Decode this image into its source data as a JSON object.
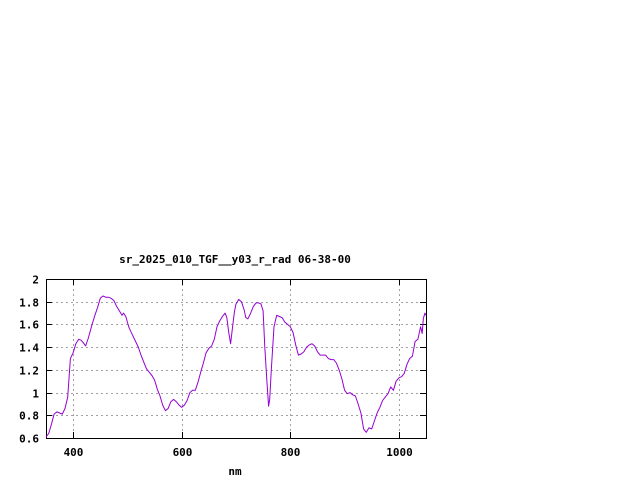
{
  "chart_data": {
    "type": "line",
    "title": "sr_2025_010_TGF__y03_r_rad 06-38-00",
    "xlabel": "nm",
    "ylabel": "",
    "xlim": [
      350,
      1050
    ],
    "ylim": [
      0.6,
      2.0
    ],
    "grid": true,
    "x_ticks": [
      400,
      600,
      800,
      1000
    ],
    "x_tick_labels": [
      "400",
      "600",
      "800",
      "1000"
    ],
    "y_ticks": [
      0.6,
      0.8,
      1.0,
      1.2,
      1.4,
      1.6,
      1.8,
      2.0
    ],
    "y_tick_labels": [
      "0.6",
      "0.8",
      "1",
      "1.2",
      "1.4",
      "1.6",
      "1.8",
      "2"
    ],
    "series": [
      {
        "name": "",
        "color": "#9400d3",
        "points": [
          [
            350,
            0.61
          ],
          [
            355,
            0.64
          ],
          [
            360,
            0.72
          ],
          [
            365,
            0.81
          ],
          [
            370,
            0.83
          ],
          [
            375,
            0.82
          ],
          [
            380,
            0.81
          ],
          [
            385,
            0.86
          ],
          [
            390,
            0.96
          ],
          [
            395,
            1.3
          ],
          [
            400,
            1.35
          ],
          [
            405,
            1.43
          ],
          [
            410,
            1.47
          ],
          [
            415,
            1.46
          ],
          [
            420,
            1.43
          ],
          [
            423,
            1.41
          ],
          [
            428,
            1.48
          ],
          [
            435,
            1.6
          ],
          [
            440,
            1.68
          ],
          [
            445,
            1.75
          ],
          [
            450,
            1.83
          ],
          [
            455,
            1.85
          ],
          [
            460,
            1.84
          ],
          [
            465,
            1.84
          ],
          [
            470,
            1.83
          ],
          [
            475,
            1.81
          ],
          [
            480,
            1.76
          ],
          [
            485,
            1.72
          ],
          [
            490,
            1.68
          ],
          [
            493,
            1.7
          ],
          [
            497,
            1.67
          ],
          [
            500,
            1.62
          ],
          [
            503,
            1.57
          ],
          [
            510,
            1.5
          ],
          [
            515,
            1.45
          ],
          [
            520,
            1.4
          ],
          [
            525,
            1.33
          ],
          [
            530,
            1.27
          ],
          [
            535,
            1.21
          ],
          [
            540,
            1.18
          ],
          [
            545,
            1.15
          ],
          [
            550,
            1.11
          ],
          [
            555,
            1.03
          ],
          [
            560,
            0.97
          ],
          [
            565,
            0.89
          ],
          [
            570,
            0.84
          ],
          [
            575,
            0.86
          ],
          [
            580,
            0.92
          ],
          [
            585,
            0.94
          ],
          [
            590,
            0.92
          ],
          [
            595,
            0.89
          ],
          [
            600,
            0.87
          ],
          [
            605,
            0.89
          ],
          [
            610,
            0.93
          ],
          [
            615,
            1.0
          ],
          [
            620,
            1.02
          ],
          [
            625,
            1.02
          ],
          [
            630,
            1.09
          ],
          [
            635,
            1.18
          ],
          [
            640,
            1.26
          ],
          [
            645,
            1.35
          ],
          [
            650,
            1.39
          ],
          [
            655,
            1.41
          ],
          [
            660,
            1.47
          ],
          [
            665,
            1.58
          ],
          [
            670,
            1.63
          ],
          [
            675,
            1.67
          ],
          [
            680,
            1.7
          ],
          [
            683,
            1.66
          ],
          [
            687,
            1.52
          ],
          [
            690,
            1.43
          ],
          [
            693,
            1.55
          ],
          [
            697,
            1.71
          ],
          [
            700,
            1.78
          ],
          [
            705,
            1.82
          ],
          [
            710,
            1.8
          ],
          [
            715,
            1.73
          ],
          [
            718,
            1.66
          ],
          [
            722,
            1.65
          ],
          [
            727,
            1.7
          ],
          [
            732,
            1.76
          ],
          [
            737,
            1.79
          ],
          [
            742,
            1.79
          ],
          [
            746,
            1.78
          ],
          [
            750,
            1.72
          ],
          [
            753,
            1.4
          ],
          [
            757,
            1.1
          ],
          [
            760,
            0.88
          ],
          [
            762,
            0.94
          ],
          [
            765,
            1.2
          ],
          [
            770,
            1.58
          ],
          [
            775,
            1.68
          ],
          [
            780,
            1.67
          ],
          [
            785,
            1.66
          ],
          [
            790,
            1.62
          ],
          [
            795,
            1.6
          ],
          [
            800,
            1.58
          ],
          [
            805,
            1.53
          ],
          [
            810,
            1.42
          ],
          [
            815,
            1.33
          ],
          [
            820,
            1.34
          ],
          [
            825,
            1.36
          ],
          [
            830,
            1.4
          ],
          [
            835,
            1.42
          ],
          [
            840,
            1.43
          ],
          [
            845,
            1.41
          ],
          [
            850,
            1.36
          ],
          [
            855,
            1.33
          ],
          [
            860,
            1.33
          ],
          [
            865,
            1.33
          ],
          [
            870,
            1.3
          ],
          [
            875,
            1.29
          ],
          [
            880,
            1.29
          ],
          [
            885,
            1.26
          ],
          [
            890,
            1.2
          ],
          [
            895,
            1.12
          ],
          [
            900,
            1.02
          ],
          [
            905,
            0.99
          ],
          [
            910,
            1.0
          ],
          [
            915,
            0.98
          ],
          [
            920,
            0.97
          ],
          [
            925,
            0.9
          ],
          [
            930,
            0.82
          ],
          [
            935,
            0.68
          ],
          [
            940,
            0.65
          ],
          [
            945,
            0.69
          ],
          [
            950,
            0.68
          ],
          [
            955,
            0.75
          ],
          [
            960,
            0.82
          ],
          [
            965,
            0.87
          ],
          [
            970,
            0.93
          ],
          [
            975,
            0.96
          ],
          [
            980,
            0.99
          ],
          [
            985,
            1.05
          ],
          [
            990,
            1.02
          ],
          [
            995,
            1.1
          ],
          [
            1000,
            1.13
          ],
          [
            1005,
            1.14
          ],
          [
            1010,
            1.17
          ],
          [
            1015,
            1.25
          ],
          [
            1020,
            1.3
          ],
          [
            1025,
            1.32
          ],
          [
            1030,
            1.45
          ],
          [
            1035,
            1.47
          ],
          [
            1040,
            1.58
          ],
          [
            1043,
            1.52
          ],
          [
            1045,
            1.65
          ],
          [
            1048,
            1.7
          ],
          [
            1050,
            1.68
          ]
        ]
      }
    ]
  }
}
